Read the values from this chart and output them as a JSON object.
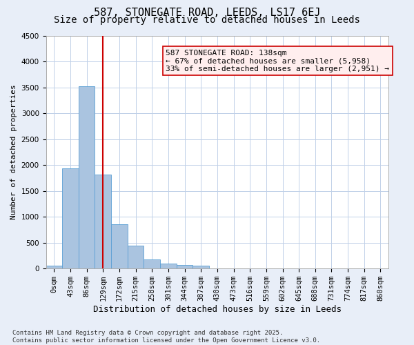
{
  "title1": "587, STONEGATE ROAD, LEEDS, LS17 6EJ",
  "title2": "Size of property relative to detached houses in Leeds",
  "xlabel": "Distribution of detached houses by size in Leeds",
  "ylabel": "Number of detached properties",
  "bin_labels": [
    "0sqm",
    "43sqm",
    "86sqm",
    "129sqm",
    "172sqm",
    "215sqm",
    "258sqm",
    "301sqm",
    "344sqm",
    "387sqm",
    "430sqm",
    "473sqm",
    "516sqm",
    "559sqm",
    "602sqm",
    "645sqm",
    "688sqm",
    "731sqm",
    "774sqm",
    "817sqm",
    "860sqm"
  ],
  "bar_values": [
    50,
    1930,
    3520,
    1820,
    860,
    440,
    180,
    100,
    70,
    50,
    0,
    0,
    0,
    0,
    0,
    0,
    0,
    0,
    0,
    0,
    0
  ],
  "bar_color": "#aac4e0",
  "bar_edge_color": "#5a9fd4",
  "vline_x": 3,
  "vline_color": "#cc0000",
  "annotation_text": "587 STONEGATE ROAD: 138sqm\n← 67% of detached houses are smaller (5,958)\n33% of semi-detached houses are larger (2,951) →",
  "annotation_box_color": "#ffeeee",
  "annotation_box_edge": "#cc0000",
  "ylim": [
    0,
    4500
  ],
  "yticks": [
    0,
    500,
    1000,
    1500,
    2000,
    2500,
    3000,
    3500,
    4000,
    4500
  ],
  "footnote": "Contains HM Land Registry data © Crown copyright and database right 2025.\nContains public sector information licensed under the Open Government Licence v3.0.",
  "bg_color": "#e8eef8",
  "plot_bg_color": "#ffffff",
  "grid_color": "#c0d0e8",
  "title1_fontsize": 11,
  "title2_fontsize": 10,
  "annotation_fontsize": 8,
  "tick_fontsize": 7.5,
  "ylabel_fontsize": 8,
  "xlabel_fontsize": 9,
  "footnote_fontsize": 6.5
}
